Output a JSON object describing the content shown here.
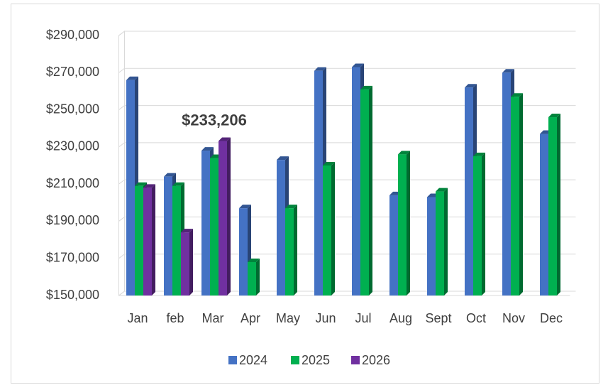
{
  "chart_data": {
    "type": "bar",
    "categories": [
      "Jan",
      "feb",
      "Mar",
      "Apr",
      "May",
      "Jun",
      "Jul",
      "Aug",
      "Sept",
      "Oct",
      "Nov",
      "Dec"
    ],
    "series": [
      {
        "name": "2024",
        "color": "#4472c4",
        "values": [
          266000,
          214000,
          228000,
          197000,
          223000,
          271000,
          273000,
          204000,
          203000,
          262000,
          270000,
          237000
        ]
      },
      {
        "name": "2025",
        "color": "#00b050",
        "values": [
          209000,
          209000,
          224000,
          168000,
          197000,
          220000,
          261000,
          226000,
          206000,
          225000,
          257000,
          246000
        ]
      },
      {
        "name": "2026",
        "color": "#7030a0",
        "values": [
          208000,
          184000,
          233206,
          null,
          null,
          null,
          null,
          null,
          null,
          null,
          null,
          null
        ],
        "value_labels": [
          null,
          null,
          "$233,206",
          null,
          null,
          null,
          null,
          null,
          null,
          null,
          null,
          null
        ]
      }
    ],
    "ylim": [
      150000,
      290000
    ],
    "yticks": [
      {
        "value": 150000,
        "label": "$150,000"
      },
      {
        "value": 170000,
        "label": "$170,000"
      },
      {
        "value": 190000,
        "label": "$190,000"
      },
      {
        "value": 210000,
        "label": "$210,000"
      },
      {
        "value": 230000,
        "label": "$230,000"
      },
      {
        "value": 250000,
        "label": "$250,000"
      },
      {
        "value": 270000,
        "label": "$270,000"
      },
      {
        "value": 290000,
        "label": "$290,000"
      }
    ],
    "grid": true,
    "legend": "bottom"
  }
}
